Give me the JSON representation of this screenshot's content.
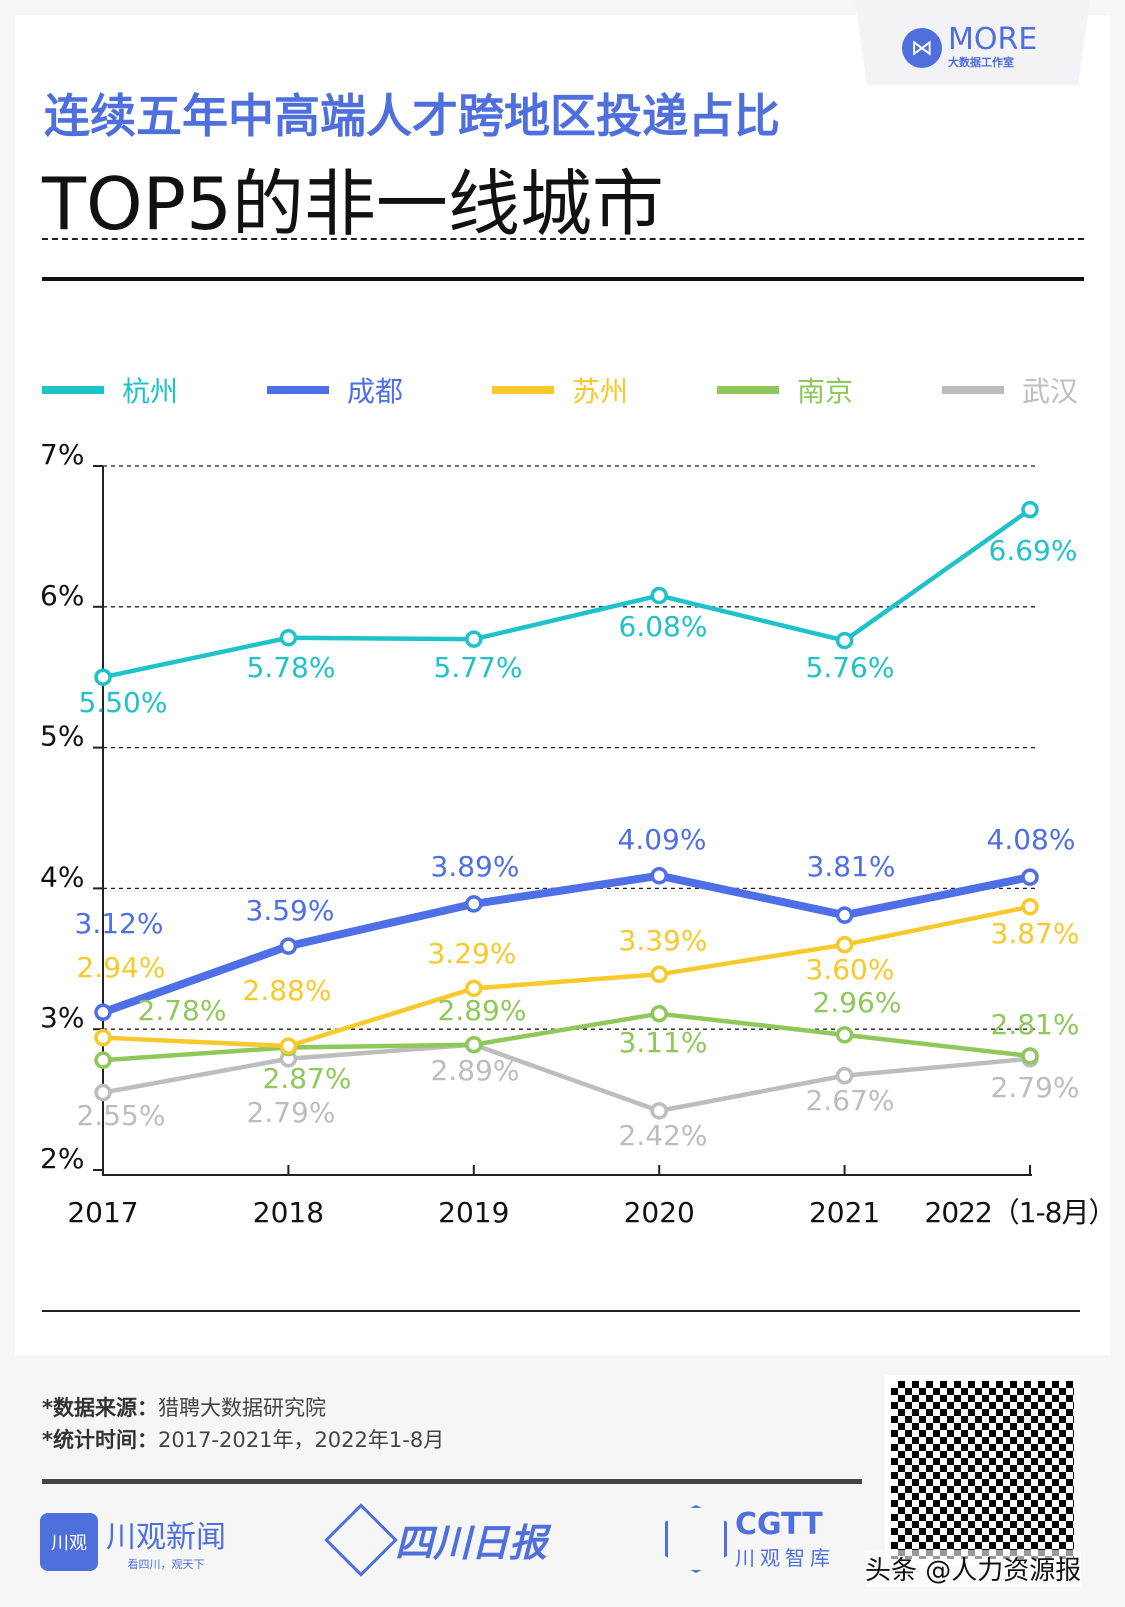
{
  "header": {
    "logo_name": "MORE",
    "logo_sub": "大数据工作室",
    "title_line1": "连续五年中高端人才跨地区投递占比",
    "title_line2": "TOP5的非一线城市"
  },
  "chart_data": {
    "type": "line",
    "title": "连续五年中高端人才跨地区投递占比TOP5的非一线城市",
    "categories": [
      "2017",
      "2018",
      "2019",
      "2020",
      "2021",
      "2022（1-8月）"
    ],
    "ylim": [
      2,
      7
    ],
    "yticks": [
      "2%",
      "3%",
      "4%",
      "5%",
      "6%",
      "7%"
    ],
    "grid": "dashed horizontal",
    "legend_position": "top",
    "series": [
      {
        "name": "杭州",
        "color": "#1fc2c9",
        "values": [
          5.5,
          5.78,
          5.77,
          6.08,
          5.76,
          6.69
        ],
        "labels": [
          "5.50%",
          "5.78%",
          "5.77%",
          "6.08%",
          "5.76%",
          "6.69%"
        ]
      },
      {
        "name": "成都",
        "color": "#4e6fe6",
        "values": [
          3.12,
          3.59,
          3.89,
          4.09,
          3.81,
          4.08
        ],
        "labels": [
          "3.12%",
          "3.59%",
          "3.89%",
          "4.09%",
          "3.81%",
          "4.08%"
        ]
      },
      {
        "name": "苏州",
        "color": "#f8c92b",
        "values": [
          2.94,
          2.88,
          3.29,
          3.39,
          3.6,
          3.87
        ],
        "labels": [
          "2.94%",
          "2.88%",
          "3.29%",
          "3.39%",
          "3.60%",
          "3.87%"
        ]
      },
      {
        "name": "南京",
        "color": "#8fc85a",
        "values": [
          2.78,
          2.87,
          2.89,
          3.11,
          2.96,
          2.81
        ],
        "labels": [
          "2.78%",
          "2.87%",
          "2.89%",
          "3.11%",
          "2.96%",
          "2.81%"
        ]
      },
      {
        "name": "武汉",
        "color": "#bdbdbd",
        "values": [
          2.55,
          2.79,
          2.89,
          2.42,
          2.67,
          2.79
        ],
        "labels": [
          "2.55%",
          "2.79%",
          "2.89%",
          "2.42%",
          "2.67%",
          "2.79%"
        ]
      }
    ]
  },
  "footer": {
    "source_label": "*数据来源：",
    "source_value": "猎聘大数据研究院",
    "time_label": "*统计时间：",
    "time_value": "2017-2021年，2022年1-8月",
    "logos": [
      {
        "name": "川观新闻",
        "sub": "看四川，观天下",
        "icon": "川观"
      },
      {
        "name": "四川日报"
      },
      {
        "name": "CGTT",
        "sub": "川观智库"
      }
    ],
    "watermark": "头条 @人力资源报"
  }
}
